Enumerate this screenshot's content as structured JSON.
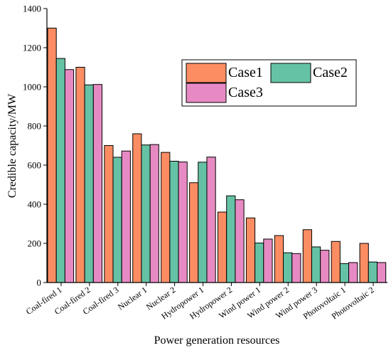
{
  "chart_data": {
    "type": "bar",
    "title": "",
    "xlabel": "Power generation resources",
    "ylabel": "Credible capacity/MW",
    "ylim": [
      0,
      1400
    ],
    "yticks": [
      0,
      200,
      400,
      600,
      800,
      1000,
      1200,
      1400
    ],
    "grid": false,
    "legend_position": "top-right",
    "categories": [
      "Coal-fired 1",
      "Coal-fired 2",
      "Coal-fired 3",
      "Nuclear 1",
      "Nuclear 2",
      "Hydropower 1",
      "Hydropower 2",
      "Wind power 1",
      "Wind power 2",
      "Wind power 3",
      "Photovoltaic 1",
      "Photovoltaic 2"
    ],
    "series": [
      {
        "name": "Case1",
        "color": "#FC8D62",
        "values": [
          1300,
          1100,
          700,
          760,
          665,
          510,
          360,
          330,
          240,
          270,
          210,
          200
        ]
      },
      {
        "name": "Case2",
        "color": "#66C2A5",
        "values": [
          1145,
          1010,
          640,
          703,
          620,
          615,
          443,
          202,
          152,
          182,
          97,
          105
        ]
      },
      {
        "name": "Case3",
        "color": "#E78AC3",
        "values": [
          1088,
          1012,
          672,
          705,
          616,
          641,
          423,
          222,
          148,
          165,
          102,
          102
        ]
      }
    ]
  }
}
